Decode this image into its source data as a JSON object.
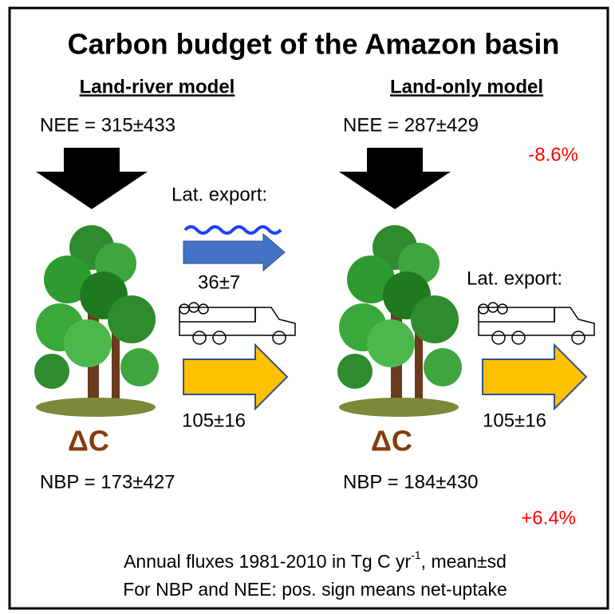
{
  "title": "Carbon budget of the Amazon basin",
  "left": {
    "heading": "Land-river model",
    "nee": "NEE = 315±433",
    "lat_export": "Lat. export:",
    "river_export": "36±7",
    "wood_export": "105±16",
    "delta": "ΔC",
    "nbp": "NBP = 173±427"
  },
  "right": {
    "heading": "Land-only model",
    "nee": "NEE = 287±429",
    "nee_change": "-8.6%",
    "lat_export": "Lat. export:",
    "wood_export": "105±16",
    "delta": "ΔC",
    "nbp": "NBP = 184±430",
    "nbp_change": "+6.4%"
  },
  "footer": {
    "line1": {
      "before": "Annual fluxes 1981-2010 in Tg C yr",
      "sup": "-1",
      "after": ", mean±sd"
    },
    "line2": "For NBP and NEE: pos. sign means net-uptake"
  }
}
